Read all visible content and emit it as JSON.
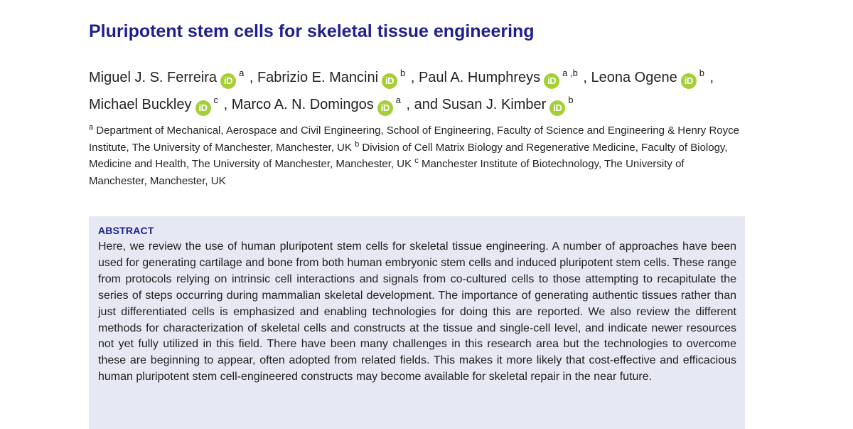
{
  "title": "Pluripotent stem cells for skeletal tissue engineering",
  "orcid_icon_label": "iD",
  "authors": [
    {
      "name": "Miguel J. S. Ferreira",
      "aff": "a",
      "sep": " , "
    },
    {
      "name": "Fabrizio E. Mancini",
      "aff": "b",
      "sep": " , "
    },
    {
      "name": "Paul A. Humphreys",
      "aff": "a ,b",
      "sep": " , "
    },
    {
      "name": "Leona Ogene",
      "aff": "b",
      "sep": " , "
    },
    {
      "name": "Michael Buckley",
      "aff": "c",
      "sep": " , "
    },
    {
      "name": "Marco A. N. Domingos",
      "aff": "a",
      "sep": " , and "
    },
    {
      "name": "Susan J. Kimber",
      "aff": "b",
      "sep": ""
    }
  ],
  "affiliations": [
    {
      "mark": "a",
      "text": "Department of Mechanical, Aerospace and Civil Engineering, School of Engineering, Faculty of Science and Engineering & Henry Royce Institute, The University of Manchester, Manchester, UK"
    },
    {
      "mark": "b",
      "text": "Division of Cell Matrix Biology and Regenerative Medicine, Faculty of Biology, Medicine and Health, The University of Manchester, Manchester, UK"
    },
    {
      "mark": "c",
      "text": "Manchester Institute of Biotechnology, The University of Manchester, Manchester, UK"
    }
  ],
  "abstract": {
    "heading": "ABSTRACT",
    "text": "Here, we review the use of human pluripotent stem cells for skeletal tissue engineering. A number of approaches have been used for generating cartilage and bone from both human embryonic stem cells and induced pluripotent stem cells. These range from protocols relying on intrinsic cell interactions and signals from co-cultured cells to those attempting to recapitulate the series of steps occurring during mammalian skeletal development. The importance of generating authentic tissues rather than just differentiated cells is emphasized and enabling technologies for doing this are reported. We also review the different methods for characterization of skeletal cells and constructs at the tissue and single-cell level, and indicate newer resources not yet fully utilized in this field. There have been many challenges in this research area but the technologies to overcome these are beginning to appear, often adopted from related fields. This makes it more likely that cost-effective and efficacious human pluripotent stem cell-engineered constructs may become available for skeletal repair in the near future."
  },
  "colors": {
    "title": "#1f1f8f",
    "orcid": "#a6ce39",
    "abstract_bg": "#e6e8f3",
    "text": "#222222"
  },
  "icons": {
    "orcid": "orcid-id-icon"
  }
}
